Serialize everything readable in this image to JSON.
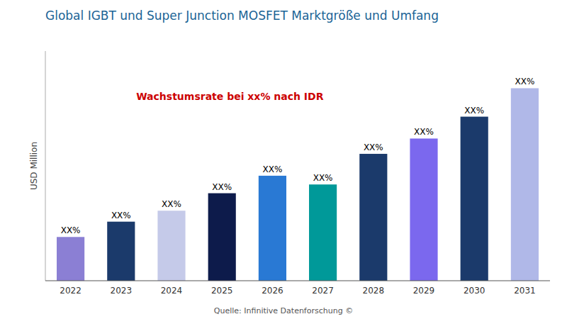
{
  "chart_data": {
    "type": "bar",
    "title": "Global IGBT und Super Junction MOSFET Marktgröße und Umfang",
    "ylabel": "USD Million",
    "annotations": [
      "Wachstumsrate bei xx% nach IDR",
      "Quelle: Infinitive Datenforschung ©"
    ],
    "categories": [
      "2022",
      "2023",
      "2024",
      "2025",
      "2026",
      "2027",
      "2028",
      "2029",
      "2030",
      "2031"
    ],
    "values": [
      2.0,
      2.7,
      3.2,
      4.0,
      4.8,
      4.4,
      5.8,
      6.5,
      7.5,
      8.8
    ],
    "value_labels": [
      "XX%",
      "XX%",
      "XX%",
      "XX%",
      "XX%",
      "XX%",
      "XX%",
      "XX%",
      "XX%",
      "XX%"
    ],
    "colors": [
      "#8b7fd4",
      "#1b3a6b",
      "#c5cae9",
      "#0d1b4b",
      "#2979d4",
      "#009999",
      "#1b3a6b",
      "#7b68ee",
      "#1b3a6b",
      "#b0b8e8"
    ],
    "ylim": [
      0,
      10.5
    ],
    "tick_labels": "x",
    "grid": false
  }
}
